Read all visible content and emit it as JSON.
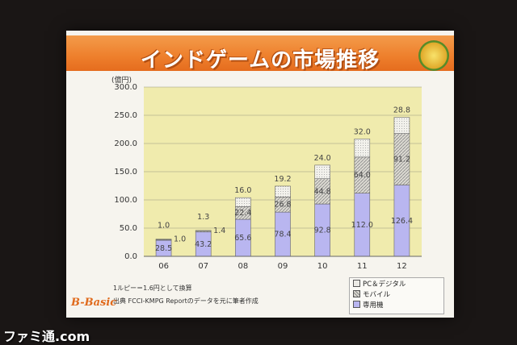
{
  "title": "インドゲームの市場推移",
  "unit_label": "(億円)",
  "chart_data": {
    "type": "bar",
    "stacked": true,
    "categories": [
      "06",
      "07",
      "08",
      "09",
      "10",
      "11",
      "12"
    ],
    "series": [
      {
        "name": "専用機",
        "values": [
          28.5,
          43.2,
          65.6,
          78.4,
          92.8,
          112.0,
          126.4
        ],
        "color": "#b9b6f0"
      },
      {
        "name": "モバイル",
        "values": [
          1.0,
          1.4,
          22.4,
          26.8,
          44.8,
          64.0,
          91.2
        ],
        "color": "#d8d6d0"
      },
      {
        "name": "PC＆デジタル",
        "values": [
          1.0,
          1.3,
          16.0,
          19.2,
          24.0,
          32.0,
          28.8
        ],
        "color": "#ecebe6"
      }
    ],
    "ylim": [
      0,
      300
    ],
    "yticks": [
      "0.0",
      "50.0",
      "100.0",
      "150.0",
      "200.0",
      "250.0",
      "300.0"
    ],
    "grid": true,
    "legend_position": "bottom-right"
  },
  "notes": {
    "exchange_rate": "1ルピー＝1.6円として換算",
    "source": "出典 FCCI-KMPG Reportのデータを元に筆者作成"
  },
  "logo_text": "B-Basic",
  "watermark": "ファミ通.com"
}
